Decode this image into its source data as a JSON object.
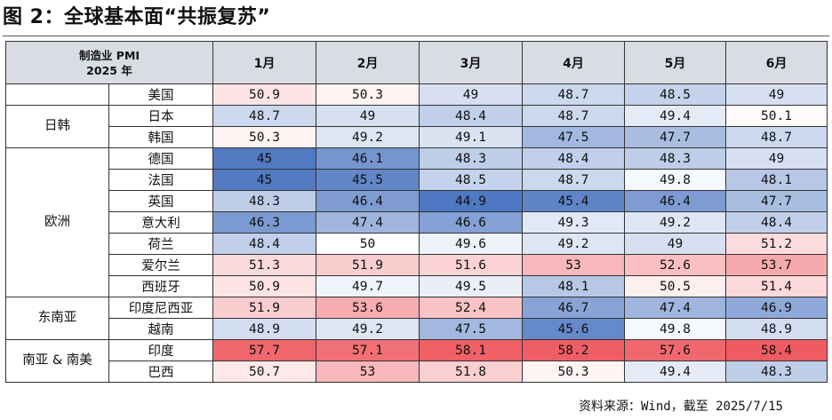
{
  "title": "图 2：全球基本面“共振复苏”",
  "table": {
    "corner_line1": "制造业 PMI",
    "corner_line2": "2025 年",
    "months": [
      "1月",
      "2月",
      "3月",
      "4月",
      "5月",
      "6月"
    ],
    "groups": [
      {
        "name": "",
        "rows": [
          {
            "country": "美国",
            "values": [
              "50.9",
              "50.3",
              "49",
              "48.7",
              "48.5",
              "49"
            ]
          }
        ]
      },
      {
        "name": "日韩",
        "rows": [
          {
            "country": "日本",
            "values": [
              "48.7",
              "49",
              "48.4",
              "48.7",
              "49.4",
              "50.1"
            ]
          },
          {
            "country": "韩国",
            "values": [
              "50.3",
              "49.2",
              "49.1",
              "47.5",
              "47.7",
              "48.7"
            ]
          }
        ]
      },
      {
        "name": "欧洲",
        "rows": [
          {
            "country": "德国",
            "values": [
              "45",
              "46.1",
              "48.3",
              "48.4",
              "48.3",
              "49"
            ]
          },
          {
            "country": "法国",
            "values": [
              "45",
              "45.5",
              "48.5",
              "48.7",
              "49.8",
              "48.1"
            ]
          },
          {
            "country": "英国",
            "values": [
              "48.3",
              "46.4",
              "44.9",
              "45.4",
              "46.4",
              "47.7"
            ]
          },
          {
            "country": "意大利",
            "values": [
              "46.3",
              "47.4",
              "46.6",
              "49.3",
              "49.2",
              "48.4"
            ]
          },
          {
            "country": "荷兰",
            "values": [
              "48.4",
              "50",
              "49.6",
              "49.2",
              "49",
              "51.2"
            ]
          },
          {
            "country": "爱尔兰",
            "values": [
              "51.3",
              "51.9",
              "51.6",
              "53",
              "52.6",
              "53.7"
            ]
          },
          {
            "country": "西班牙",
            "values": [
              "50.9",
              "49.7",
              "49.5",
              "48.1",
              "50.5",
              "51.4"
            ]
          }
        ]
      },
      {
        "name": "东南亚",
        "rows": [
          {
            "country": "印度尼西亚",
            "values": [
              "51.9",
              "53.6",
              "52.4",
              "46.7",
              "47.4",
              "46.9"
            ]
          },
          {
            "country": "越南",
            "values": [
              "48.9",
              "49.2",
              "47.5",
              "45.6",
              "49.8",
              "48.9"
            ]
          }
        ]
      },
      {
        "name": "南亚 & 南美",
        "rows": [
          {
            "country": "印度",
            "values": [
              "57.7",
              "57.1",
              "58.1",
              "58.2",
              "57.6",
              "58.4"
            ]
          },
          {
            "country": "巴西",
            "values": [
              "50.7",
              "53",
              "51.8",
              "50.3",
              "49.4",
              "48.3"
            ]
          }
        ]
      }
    ]
  },
  "colors": {
    "low": "#4f78c2",
    "mid": "#ffffff",
    "high": "#ef5b62",
    "header_bg": "#d9dde3"
  },
  "source": "资料来源：Wind，截至 2025/7/15"
}
